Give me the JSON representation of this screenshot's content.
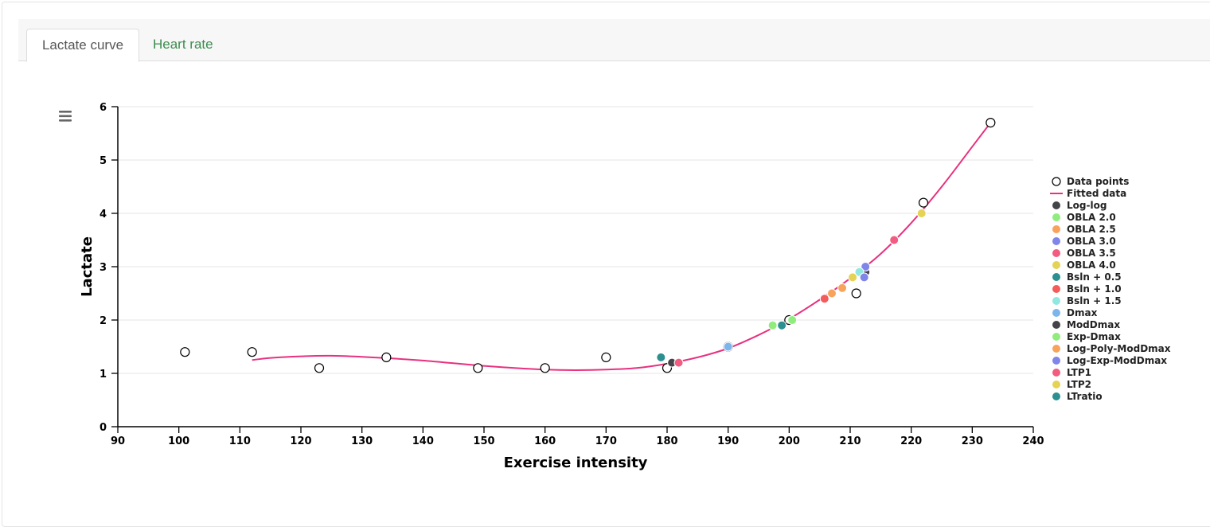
{
  "tabs": [
    {
      "label": "Lactate curve",
      "active": true
    },
    {
      "label": "Heart rate",
      "active": false
    }
  ],
  "chart_data": {
    "type": "scatter",
    "xlabel": "Exercise intensity",
    "ylabel": "Lactate",
    "xlim": [
      90,
      240
    ],
    "ylim": [
      0,
      6
    ],
    "xticks": [
      90,
      100,
      110,
      120,
      130,
      140,
      150,
      160,
      170,
      180,
      190,
      200,
      210,
      220,
      230,
      240
    ],
    "yticks": [
      0,
      1,
      2,
      3,
      4,
      5,
      6
    ],
    "grid": "horizontal",
    "legend_position": "right",
    "data_points": {
      "name": "Data points",
      "x": [
        101,
        112,
        123,
        134,
        149,
        160,
        170,
        180,
        190,
        200,
        211,
        222,
        233
      ],
      "y": [
        1.4,
        1.4,
        1.1,
        1.3,
        1.1,
        1.1,
        1.3,
        1.1,
        1.5,
        2.0,
        2.5,
        4.2,
        5.7
      ]
    },
    "fitted_data": {
      "name": "Fitted data",
      "color": "#e8317f",
      "x": [
        112,
        115,
        120,
        125,
        130,
        135,
        140,
        145,
        150,
        155,
        160,
        165,
        170,
        175,
        180,
        185,
        190,
        195,
        200,
        205,
        210,
        215,
        220,
        225,
        230,
        233
      ],
      "y": [
        1.25,
        1.29,
        1.32,
        1.33,
        1.31,
        1.28,
        1.24,
        1.19,
        1.14,
        1.1,
        1.07,
        1.06,
        1.07,
        1.1,
        1.18,
        1.3,
        1.47,
        1.72,
        2.02,
        2.38,
        2.78,
        3.24,
        3.82,
        4.5,
        5.25,
        5.7
      ]
    },
    "thresholds": [
      {
        "name": "Log-log",
        "color": "#434348",
        "x": 212.5,
        "y": 2.9
      },
      {
        "name": "OBLA 2.0",
        "color": "#90ed7d",
        "x": 200.5,
        "y": 2.0
      },
      {
        "name": "OBLA 2.5",
        "color": "#f7a35c",
        "x": 207.0,
        "y": 2.5
      },
      {
        "name": "OBLA 3.0",
        "color": "#8085e9",
        "x": 212.5,
        "y": 3.0
      },
      {
        "name": "OBLA 3.5",
        "color": "#f15c80",
        "x": 217.2,
        "y": 3.5
      },
      {
        "name": "OBLA 4.0",
        "color": "#e4d354",
        "x": 221.7,
        "y": 4.0
      },
      {
        "name": "Bsln + 0.5",
        "color": "#2b908f",
        "x": 179.0,
        "y": 1.3
      },
      {
        "name": "Bsln + 1.0",
        "color": "#f45b5b",
        "x": 205.8,
        "y": 2.4
      },
      {
        "name": "Bsln + 1.5",
        "color": "#91e8e1",
        "x": 211.5,
        "y": 2.9
      },
      {
        "name": "Dmax",
        "color": "#7cb5ec",
        "x": 190.0,
        "y": 1.5
      },
      {
        "name": "ModDmax",
        "color": "#434348",
        "x": 180.8,
        "y": 1.2
      },
      {
        "name": "Exp-Dmax",
        "color": "#90ed7d",
        "x": 197.3,
        "y": 1.9
      },
      {
        "name": "Log-Poly-ModDmax",
        "color": "#f7a35c",
        "x": 208.7,
        "y": 2.6
      },
      {
        "name": "Log-Exp-ModDmax",
        "color": "#8085e9",
        "x": 212.3,
        "y": 2.8
      },
      {
        "name": "LTP1",
        "color": "#f15c80",
        "x": 181.9,
        "y": 1.2
      },
      {
        "name": "LTP2",
        "color": "#e4d354",
        "x": 210.4,
        "y": 2.8
      },
      {
        "name": "LTratio",
        "color": "#2b908f",
        "x": 198.8,
        "y": 1.9
      }
    ]
  }
}
